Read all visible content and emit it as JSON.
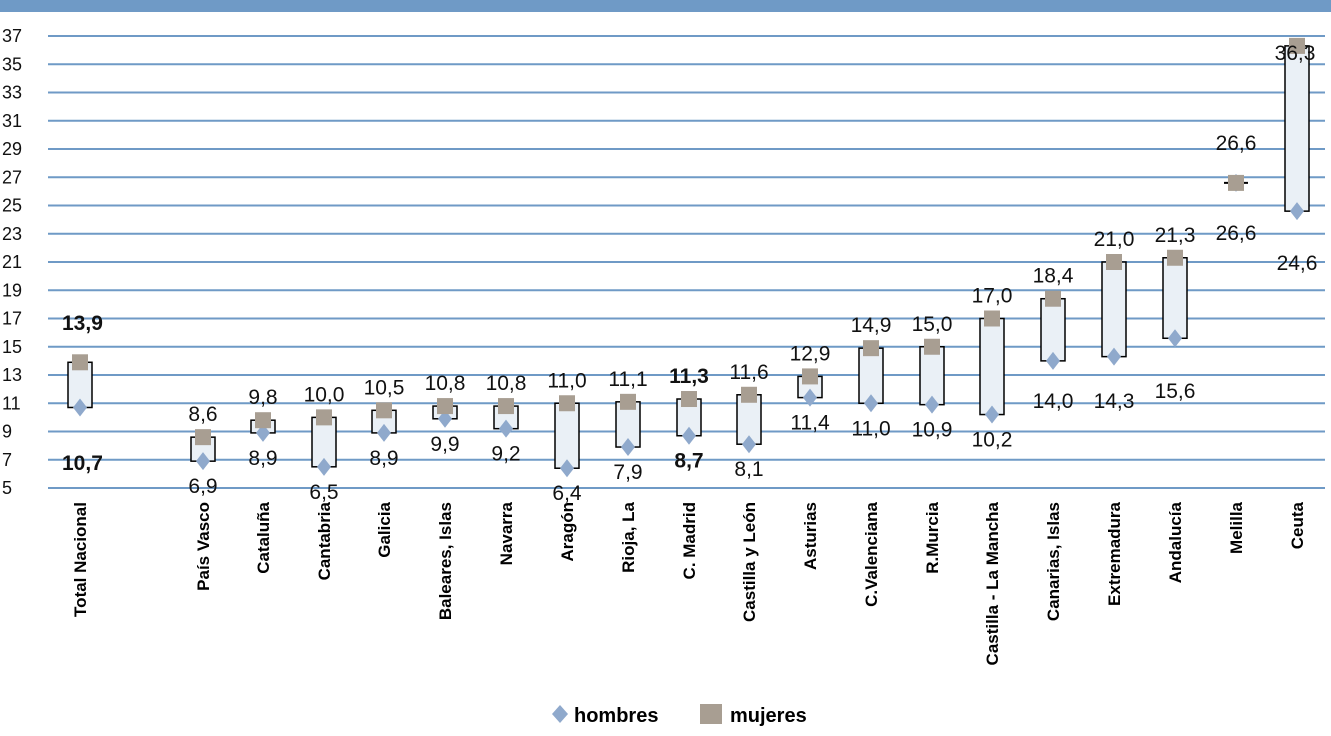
{
  "chart_data": {
    "type": "range-bar",
    "ylim": [
      5,
      37
    ],
    "yticks": [
      5,
      7,
      9,
      11,
      13,
      15,
      17,
      19,
      21,
      23,
      25,
      27,
      29,
      31,
      33,
      35,
      37
    ],
    "grid": true,
    "legend_position": "bottom-center",
    "categories": [
      "Total Nacional",
      "País Vasco",
      "Cataluña",
      "Cantabria",
      "Galicia",
      "Baleares, Islas",
      "Navarra",
      "Aragón",
      "Rioja, La",
      "C. Madrid",
      "Castilla y León",
      "Asturias",
      "C.Valenciana",
      "R.Murcia",
      "Castilla - La Mancha",
      "Canarias, Islas",
      "Extremadura",
      "Andalucía",
      "Melilla",
      "Ceuta"
    ],
    "series": [
      {
        "name": "hombres",
        "marker": "diamond",
        "color": "#8fa9cc",
        "values": [
          10.7,
          6.9,
          8.9,
          6.5,
          8.9,
          9.9,
          9.2,
          6.4,
          7.9,
          8.7,
          8.1,
          11.4,
          11.0,
          10.9,
          10.2,
          14.0,
          14.3,
          15.6,
          26.6,
          24.6
        ],
        "labels": [
          "10,7",
          "6,9",
          "8,9",
          "6,5",
          "8,9",
          "9,9",
          "9,2",
          "6,4",
          "7,9",
          "8,7",
          "8,1",
          "11,4",
          "11,0",
          "10,9",
          "10,2",
          "14,0",
          "14,3",
          "15,6",
          "26,6",
          "24,6"
        ]
      },
      {
        "name": "mujeres",
        "marker": "square",
        "color": "#a89e92",
        "values": [
          13.9,
          8.6,
          9.8,
          10.0,
          10.5,
          10.8,
          10.8,
          11.0,
          11.1,
          11.3,
          11.6,
          12.9,
          14.9,
          15.0,
          17.0,
          18.4,
          21.0,
          21.3,
          26.6,
          36.3
        ],
        "labels": [
          "13,9",
          "8,6",
          "9,8",
          "10,0",
          "10,5",
          "10,8",
          "10,8",
          "11,0",
          "11,1",
          "11,3",
          "11,6",
          "12,9",
          "14,9",
          "15,0",
          "17,0",
          "18,4",
          "21,0",
          "21,3",
          "26,6",
          "36,3"
        ]
      }
    ],
    "bold_categories": [
      "Total Nacional",
      "C. Madrid"
    ]
  },
  "colors": {
    "grid": "#6f9ac6",
    "bar_fill": "#eaf0f6",
    "bar_stroke": "#000000",
    "top_bar": "#6f9ac6"
  }
}
